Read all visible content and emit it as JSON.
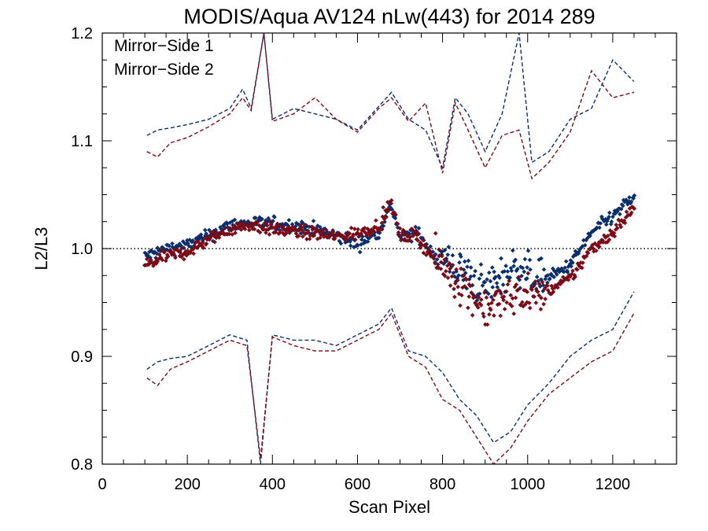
{
  "chart_data": {
    "type": "scatter",
    "title": "MODIS/Aqua AV124 nLw(443) for 2014 289",
    "xlabel": "Scan Pixel",
    "ylabel": "L2/L3",
    "xlim": [
      0,
      1350
    ],
    "ylim": [
      0.8,
      1.2
    ],
    "x_ticks": [
      0,
      200,
      400,
      600,
      800,
      1000,
      1200
    ],
    "y_ticks": [
      0.8,
      0.9,
      1.0,
      1.1,
      1.2
    ],
    "x_tick_labels": [
      "0",
      "200",
      "400",
      "600",
      "800",
      "1000",
      "1200"
    ],
    "y_tick_labels": [
      "0.8",
      "0.9",
      "1.0",
      "1.1",
      "1.2"
    ],
    "reference_line": 1.0,
    "legend_position": "top-left",
    "grid": false,
    "series": [
      {
        "name": "Mirror−Side 1",
        "color": "#0b2f6b",
        "mean": [
          [
            105,
            0.993
          ],
          [
            150,
            1.0
          ],
          [
            200,
            1.003
          ],
          [
            250,
            1.012
          ],
          [
            300,
            1.022
          ],
          [
            350,
            1.024
          ],
          [
            400,
            1.023
          ],
          [
            450,
            1.021
          ],
          [
            500,
            1.018
          ],
          [
            550,
            1.012
          ],
          [
            600,
            1.004
          ],
          [
            650,
            1.016
          ],
          [
            680,
            1.04
          ],
          [
            700,
            1.01
          ],
          [
            740,
            1.015
          ],
          [
            780,
            0.995
          ],
          [
            820,
            0.985
          ],
          [
            860,
            0.975
          ],
          [
            900,
            0.963
          ],
          [
            940,
            0.975
          ],
          [
            980,
            0.985
          ],
          [
            1020,
            0.97
          ],
          [
            1060,
            0.975
          ],
          [
            1100,
            0.985
          ],
          [
            1150,
            1.015
          ],
          [
            1200,
            1.03
          ],
          [
            1250,
            1.048
          ]
        ],
        "upper": [
          [
            105,
            1.105
          ],
          [
            130,
            1.11
          ],
          [
            160,
            1.112
          ],
          [
            200,
            1.115
          ],
          [
            250,
            1.12
          ],
          [
            300,
            1.13
          ],
          [
            330,
            1.148
          ],
          [
            350,
            1.13
          ],
          [
            380,
            1.2
          ],
          [
            400,
            1.12
          ],
          [
            450,
            1.13
          ],
          [
            500,
            1.125
          ],
          [
            550,
            1.12
          ],
          [
            600,
            1.11
          ],
          [
            650,
            1.132
          ],
          [
            680,
            1.145
          ],
          [
            720,
            1.12
          ],
          [
            760,
            1.11
          ],
          [
            800,
            1.075
          ],
          [
            830,
            1.14
          ],
          [
            860,
            1.125
          ],
          [
            900,
            1.09
          ],
          [
            940,
            1.125
          ],
          [
            980,
            1.2
          ],
          [
            1010,
            1.08
          ],
          [
            1050,
            1.09
          ],
          [
            1100,
            1.12
          ],
          [
            1150,
            1.13
          ],
          [
            1200,
            1.175
          ],
          [
            1250,
            1.155
          ]
        ],
        "lower": [
          [
            105,
            0.888
          ],
          [
            130,
            0.895
          ],
          [
            160,
            0.898
          ],
          [
            200,
            0.9
          ],
          [
            250,
            0.91
          ],
          [
            300,
            0.92
          ],
          [
            340,
            0.915
          ],
          [
            372,
            0.8
          ],
          [
            400,
            0.92
          ],
          [
            450,
            0.915
          ],
          [
            500,
            0.915
          ],
          [
            550,
            0.91
          ],
          [
            600,
            0.92
          ],
          [
            650,
            0.93
          ],
          [
            680,
            0.945
          ],
          [
            720,
            0.905
          ],
          [
            760,
            0.9
          ],
          [
            800,
            0.885
          ],
          [
            840,
            0.86
          ],
          [
            880,
            0.845
          ],
          [
            920,
            0.82
          ],
          [
            960,
            0.83
          ],
          [
            1000,
            0.855
          ],
          [
            1050,
            0.875
          ],
          [
            1100,
            0.9
          ],
          [
            1150,
            0.915
          ],
          [
            1200,
            0.925
          ],
          [
            1250,
            0.96
          ]
        ]
      },
      {
        "name": "Mirror−Side 2",
        "color": "#7a0b17",
        "mean": [
          [
            105,
            0.985
          ],
          [
            150,
            0.993
          ],
          [
            200,
            0.997
          ],
          [
            250,
            1.008
          ],
          [
            300,
            1.018
          ],
          [
            350,
            1.022
          ],
          [
            400,
            1.018
          ],
          [
            450,
            1.016
          ],
          [
            500,
            1.014
          ],
          [
            550,
            1.011
          ],
          [
            600,
            1.014
          ],
          [
            650,
            1.022
          ],
          [
            680,
            1.042
          ],
          [
            700,
            1.012
          ],
          [
            740,
            1.012
          ],
          [
            780,
            0.99
          ],
          [
            820,
            0.978
          ],
          [
            860,
            0.96
          ],
          [
            900,
            0.945
          ],
          [
            940,
            0.95
          ],
          [
            980,
            0.96
          ],
          [
            1020,
            0.955
          ],
          [
            1060,
            0.963
          ],
          [
            1100,
            0.972
          ],
          [
            1150,
            1.0
          ],
          [
            1200,
            1.015
          ],
          [
            1250,
            1.038
          ]
        ],
        "upper": [
          [
            105,
            1.09
          ],
          [
            130,
            1.085
          ],
          [
            160,
            1.098
          ],
          [
            200,
            1.103
          ],
          [
            250,
            1.113
          ],
          [
            300,
            1.125
          ],
          [
            330,
            1.14
          ],
          [
            350,
            1.128
          ],
          [
            380,
            1.2
          ],
          [
            400,
            1.118
          ],
          [
            450,
            1.125
          ],
          [
            500,
            1.14
          ],
          [
            550,
            1.12
          ],
          [
            600,
            1.108
          ],
          [
            650,
            1.13
          ],
          [
            680,
            1.14
          ],
          [
            720,
            1.118
          ],
          [
            760,
            1.135
          ],
          [
            800,
            1.07
          ],
          [
            830,
            1.135
          ],
          [
            860,
            1.11
          ],
          [
            900,
            1.075
          ],
          [
            940,
            1.105
          ],
          [
            980,
            1.11
          ],
          [
            1010,
            1.065
          ],
          [
            1050,
            1.08
          ],
          [
            1100,
            1.108
          ],
          [
            1150,
            1.165
          ],
          [
            1200,
            1.14
          ],
          [
            1250,
            1.145
          ]
        ],
        "lower": [
          [
            105,
            0.88
          ],
          [
            130,
            0.873
          ],
          [
            160,
            0.888
          ],
          [
            200,
            0.895
          ],
          [
            250,
            0.905
          ],
          [
            300,
            0.915
          ],
          [
            340,
            0.91
          ],
          [
            372,
            0.805
          ],
          [
            400,
            0.918
          ],
          [
            450,
            0.91
          ],
          [
            500,
            0.905
          ],
          [
            550,
            0.905
          ],
          [
            600,
            0.915
          ],
          [
            650,
            0.925
          ],
          [
            680,
            0.94
          ],
          [
            720,
            0.9
          ],
          [
            760,
            0.89
          ],
          [
            800,
            0.86
          ],
          [
            840,
            0.85
          ],
          [
            880,
            0.825
          ],
          [
            920,
            0.8
          ],
          [
            960,
            0.815
          ],
          [
            1000,
            0.84
          ],
          [
            1050,
            0.865
          ],
          [
            1100,
            0.88
          ],
          [
            1150,
            0.895
          ],
          [
            1200,
            0.905
          ],
          [
            1250,
            0.94
          ]
        ]
      }
    ]
  }
}
